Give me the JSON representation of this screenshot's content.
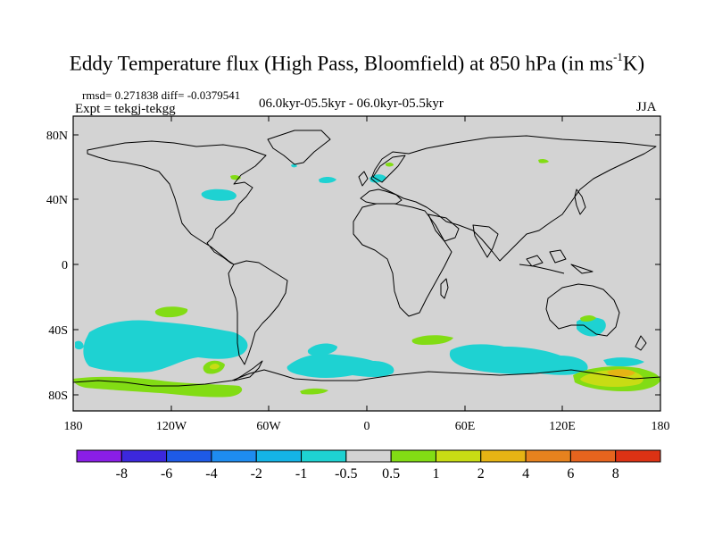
{
  "title": {
    "main": "Eddy Temperature flux (High Pass, Bloomfield) at 850 hPa (in ms",
    "sup": "-1",
    "end": "K)"
  },
  "stats": "rmsd= 0.271838 diff= -0.0379541",
  "experiment": "Expt = tekgj-tekgg",
  "period": "06.0kyr-05.5kyr - 06.0kyr-05.5kyr",
  "season": "JJA",
  "map": {
    "lat_ticks": [
      "80N",
      "40N",
      "0",
      "40S",
      "80S"
    ],
    "lon_ticks": [
      "180",
      "120W",
      "60W",
      "0",
      "60E",
      "120E",
      "180"
    ],
    "background_color": "#d3d3d3"
  },
  "colorbar": {
    "labels": [
      "-8",
      "-6",
      "-4",
      "-2",
      "-1",
      "-0.5",
      "0.5",
      "1",
      "2",
      "4",
      "6",
      "8"
    ],
    "colors": [
      "#8a1ee6",
      "#3c28dc",
      "#1e5ae6",
      "#1e8cf0",
      "#14b4e6",
      "#1ed2d2",
      "#d3d3d3",
      "#82dc14",
      "#c8dc14",
      "#e6b414",
      "#e6821e",
      "#e6641e",
      "#dc3214"
    ]
  }
}
